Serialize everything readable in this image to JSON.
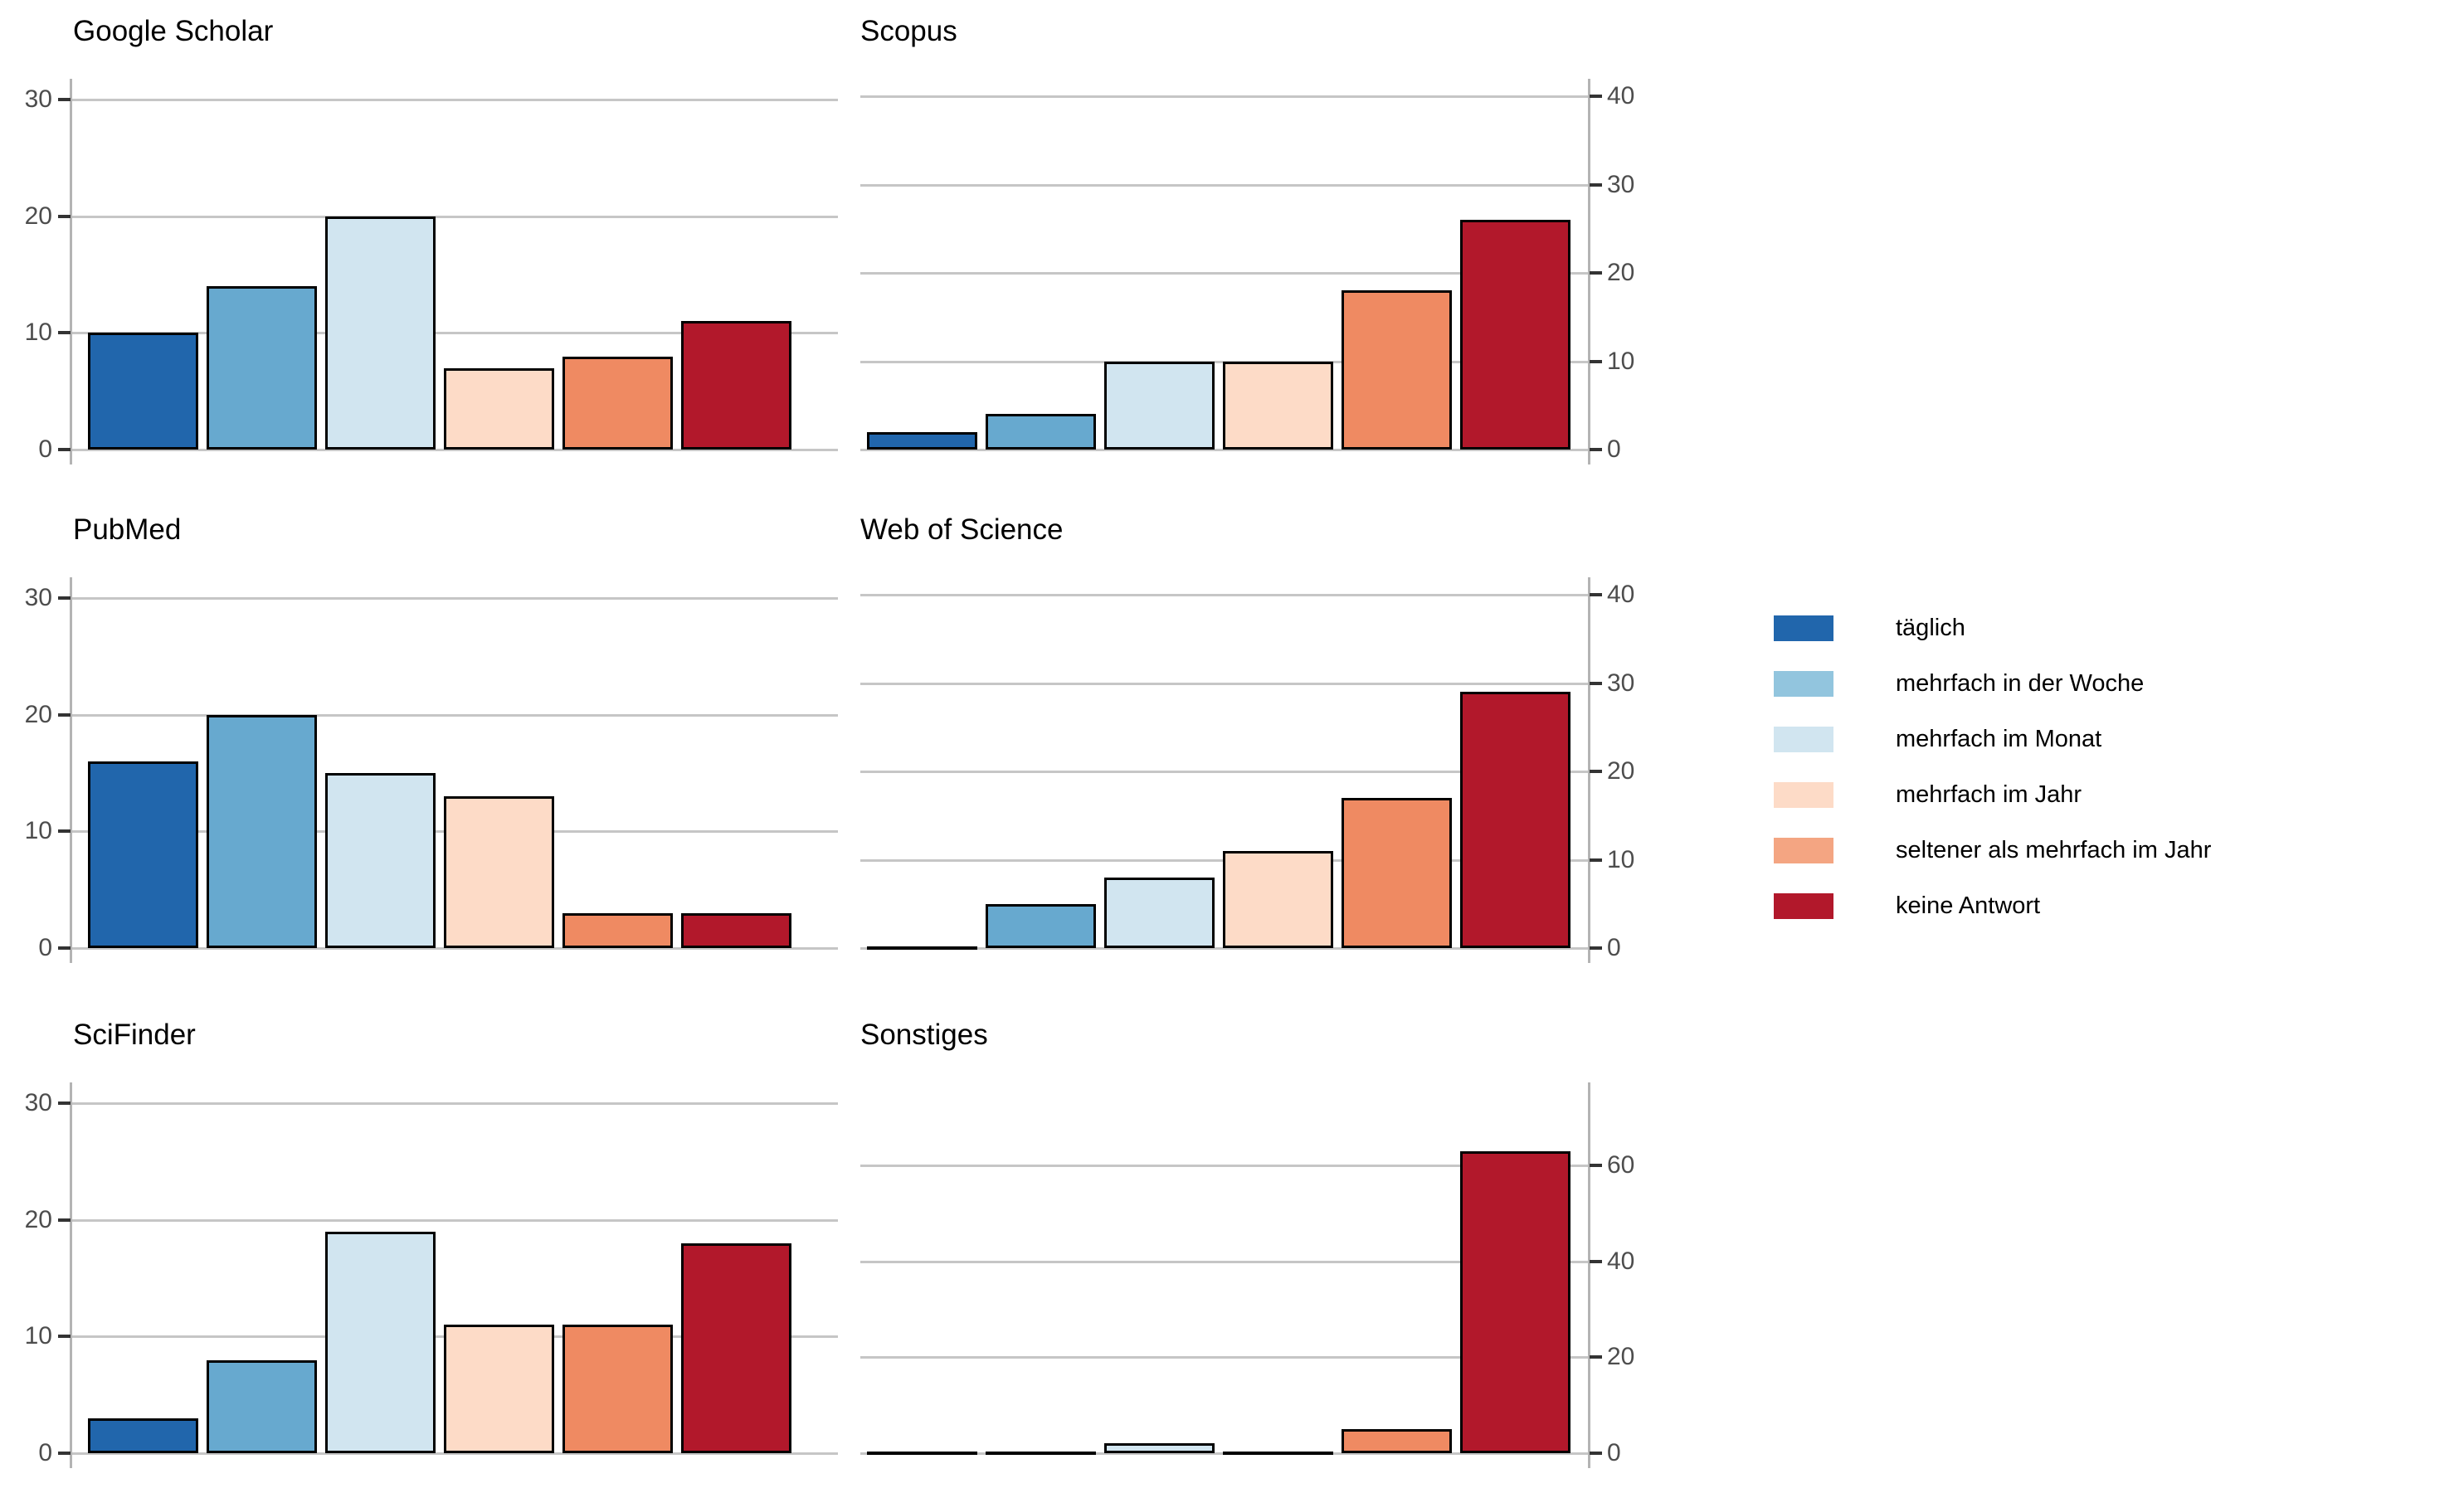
{
  "figure_title": "",
  "categories": [
    "täglich",
    "mehrfach in der Woche",
    "mehrfach im Monat",
    "mehrfach im Jahr",
    "seltener als mehrfach im Jahr",
    "keine Antwort"
  ],
  "chart_data": [
    {
      "type": "bar",
      "title": "Google Scholar",
      "categories": [
        "täglich",
        "mehrfach in der Woche",
        "mehrfach im Monat",
        "mehrfach im Jahr",
        "seltener als mehrfach im Jahr",
        "keine Antwort"
      ],
      "values": [
        10,
        14,
        20,
        7,
        8,
        11
      ],
      "yticks": [
        0,
        10,
        20,
        30
      ],
      "ylim": [
        0,
        31.8
      ],
      "axis_side": "left",
      "grid": true,
      "xlabel": "",
      "ylabel": ""
    },
    {
      "type": "bar",
      "title": "Scopus",
      "categories": [
        "täglich",
        "mehrfach in der Woche",
        "mehrfach im Monat",
        "mehrfach im Jahr",
        "seltener als mehrfach im Jahr",
        "keine Antwort"
      ],
      "values": [
        2,
        4,
        10,
        10,
        18,
        26
      ],
      "yticks": [
        0,
        10,
        20,
        30,
        40
      ],
      "ylim": [
        0,
        42
      ],
      "axis_side": "right",
      "grid": true,
      "xlabel": "",
      "ylabel": ""
    },
    {
      "type": "bar",
      "title": "PubMed",
      "categories": [
        "täglich",
        "mehrfach in der Woche",
        "mehrfach im Monat",
        "mehrfach im Jahr",
        "seltener als mehrfach im Jahr",
        "keine Antwort"
      ],
      "values": [
        16,
        20,
        15,
        13,
        3,
        3
      ],
      "yticks": [
        0,
        10,
        20,
        30
      ],
      "ylim": [
        0,
        31.8
      ],
      "axis_side": "left",
      "grid": true,
      "xlabel": "",
      "ylabel": ""
    },
    {
      "type": "bar",
      "title": "Web of Science",
      "categories": [
        "täglich",
        "mehrfach in der Woche",
        "mehrfach im Monat",
        "mehrfach im Jahr",
        "seltener als mehrfach im Jahr",
        "keine Antwort"
      ],
      "values": [
        0,
        5,
        8,
        11,
        17,
        29
      ],
      "yticks": [
        0,
        10,
        20,
        30,
        40
      ],
      "ylim": [
        0,
        42
      ],
      "axis_side": "right",
      "grid": true,
      "xlabel": "",
      "ylabel": ""
    },
    {
      "type": "bar",
      "title": "SciFinder",
      "categories": [
        "täglich",
        "mehrfach in der Woche",
        "mehrfach im Monat",
        "mehrfach im Jahr",
        "seltener als mehrfach im Jahr",
        "keine Antwort"
      ],
      "values": [
        3,
        8,
        19,
        11,
        11,
        18
      ],
      "yticks": [
        0,
        10,
        20,
        30
      ],
      "ylim": [
        0,
        31.8
      ],
      "axis_side": "left",
      "grid": true,
      "xlabel": "",
      "ylabel": ""
    },
    {
      "type": "bar",
      "title": "Sonstiges",
      "categories": [
        "täglich",
        "mehrfach in der Woche",
        "mehrfach im Monat",
        "mehrfach im Jahr",
        "seltener als mehrfach im Jahr",
        "keine Antwort"
      ],
      "values": [
        0,
        0,
        2,
        0,
        5,
        63
      ],
      "yticks": [
        0,
        20,
        40,
        60
      ],
      "ylim": [
        0,
        77.3
      ],
      "axis_side": "right",
      "grid": true,
      "xlabel": "",
      "ylabel": ""
    }
  ],
  "legend": {
    "position": "right",
    "items": [
      {
        "label": "täglich",
        "swatch_color": "#2166ac"
      },
      {
        "label": "mehrfach in der Woche",
        "swatch_color": "#92c5de"
      },
      {
        "label": "mehrfach im Monat",
        "swatch_color": "#d1e5f0"
      },
      {
        "label": "mehrfach im Jahr",
        "swatch_color": "#fddbc7"
      },
      {
        "label": "seltener als mehrfach im Jahr",
        "swatch_color": "#f4a582"
      },
      {
        "label": "keine Antwort",
        "swatch_color": "#b2182b"
      }
    ]
  },
  "colors": {
    "bar_fills": [
      "#2166ac",
      "#67a9cf",
      "#d1e5f0",
      "#fddbc7",
      "#ef8a62",
      "#b2182b"
    ],
    "bar_stroke": "#000000",
    "gridline": "#c6c6c6",
    "axis_line": "#b4b4b4",
    "tick": "#333333",
    "tick_label": "#4d4d4d",
    "title": "#000000",
    "background": "#ffffff"
  }
}
